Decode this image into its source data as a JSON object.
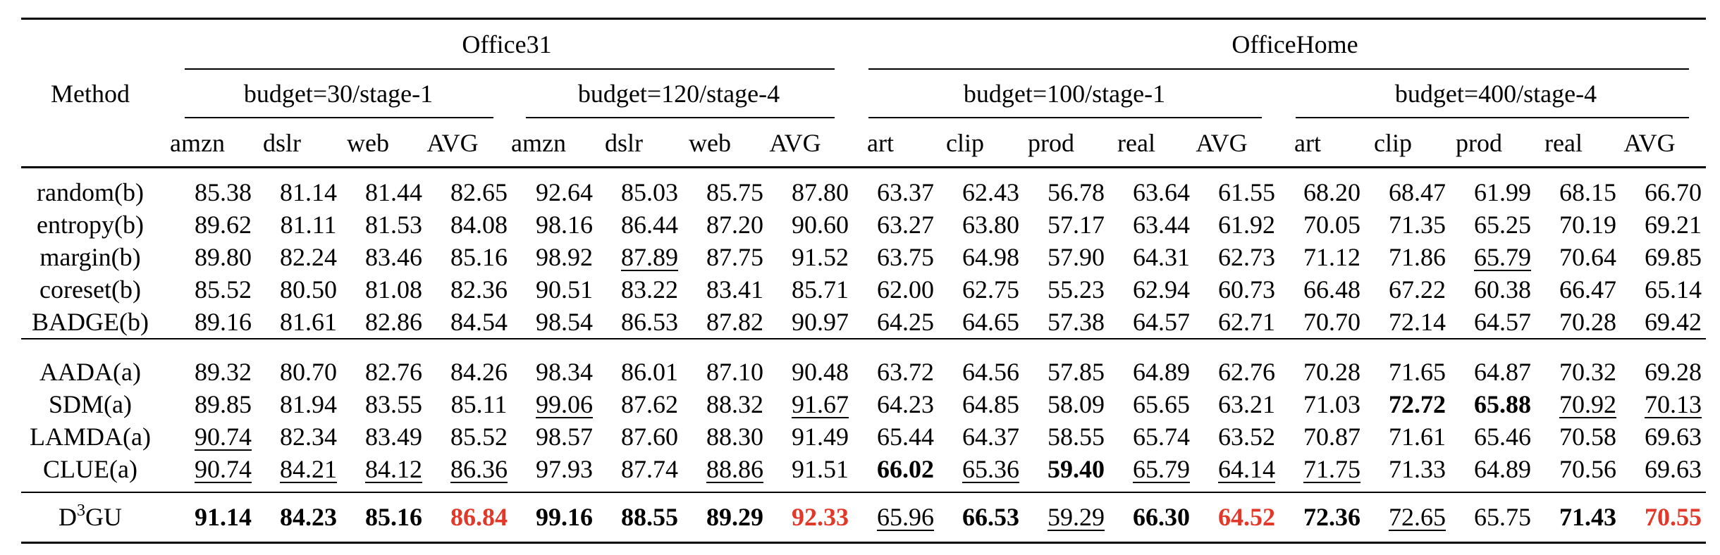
{
  "header": {
    "method_label": "Method",
    "datasets": [
      "Office31",
      "OfficeHome"
    ],
    "budgets": [
      "budget=30/stage-1",
      "budget=120/stage-4",
      "budget=100/stage-1",
      "budget=400/stage-4"
    ],
    "columns": [
      "amzn",
      "dslr",
      "web",
      "AVG",
      "amzn",
      "dslr",
      "web",
      "AVG",
      "art",
      "clip",
      "prod",
      "real",
      "AVG",
      "art",
      "clip",
      "prod",
      "real",
      "AVG"
    ]
  },
  "groups": [
    {
      "rows": [
        {
          "method": "random(b)",
          "values": [
            "85.38",
            "81.14",
            "81.44",
            "82.65",
            "92.64",
            "85.03",
            "85.75",
            "87.80",
            "63.37",
            "62.43",
            "56.78",
            "63.64",
            "61.55",
            "68.20",
            "68.47",
            "61.99",
            "68.15",
            "66.70"
          ],
          "styles": [
            "",
            "",
            "",
            "",
            "",
            "",
            "",
            "",
            "",
            "",
            "",
            "",
            "",
            "",
            "",
            "",
            "",
            ""
          ]
        },
        {
          "method": "entropy(b)",
          "values": [
            "89.62",
            "81.11",
            "81.53",
            "84.08",
            "98.16",
            "86.44",
            "87.20",
            "90.60",
            "63.27",
            "63.80",
            "57.17",
            "63.44",
            "61.92",
            "70.05",
            "71.35",
            "65.25",
            "70.19",
            "69.21"
          ],
          "styles": [
            "",
            "",
            "",
            "",
            "",
            "",
            "",
            "",
            "",
            "",
            "",
            "",
            "",
            "",
            "",
            "",
            "",
            ""
          ]
        },
        {
          "method": "margin(b)",
          "values": [
            "89.80",
            "82.24",
            "83.46",
            "85.16",
            "98.92",
            "87.89",
            "87.75",
            "91.52",
            "63.75",
            "64.98",
            "57.90",
            "64.31",
            "62.73",
            "71.12",
            "71.86",
            "65.79",
            "70.64",
            "69.85"
          ],
          "styles": [
            "",
            "",
            "",
            "",
            "",
            "u",
            "",
            "",
            "",
            "",
            "",
            "",
            "",
            "",
            "",
            "u",
            "",
            ""
          ]
        },
        {
          "method": "coreset(b)",
          "values": [
            "85.52",
            "80.50",
            "81.08",
            "82.36",
            "90.51",
            "83.22",
            "83.41",
            "85.71",
            "62.00",
            "62.75",
            "55.23",
            "62.94",
            "60.73",
            "66.48",
            "67.22",
            "60.38",
            "66.47",
            "65.14"
          ],
          "styles": [
            "",
            "",
            "",
            "",
            "",
            "",
            "",
            "",
            "",
            "",
            "",
            "",
            "",
            "",
            "",
            "",
            "",
            ""
          ]
        },
        {
          "method": "BADGE(b)",
          "values": [
            "89.16",
            "81.61",
            "82.86",
            "84.54",
            "98.54",
            "86.53",
            "87.82",
            "90.97",
            "64.25",
            "64.65",
            "57.38",
            "64.57",
            "62.71",
            "70.70",
            "72.14",
            "64.57",
            "70.28",
            "69.42"
          ],
          "styles": [
            "",
            "",
            "",
            "",
            "",
            "",
            "",
            "",
            "",
            "",
            "",
            "",
            "",
            "",
            "",
            "",
            "",
            ""
          ]
        }
      ]
    },
    {
      "rows": [
        {
          "method": "AADA(a)",
          "values": [
            "89.32",
            "80.70",
            "82.76",
            "84.26",
            "98.34",
            "86.01",
            "87.10",
            "90.48",
            "63.72",
            "64.56",
            "57.85",
            "64.89",
            "62.76",
            "70.28",
            "71.65",
            "64.87",
            "70.32",
            "69.28"
          ],
          "styles": [
            "",
            "",
            "",
            "",
            "",
            "",
            "",
            "",
            "",
            "",
            "",
            "",
            "",
            "",
            "",
            "",
            "",
            ""
          ]
        },
        {
          "method": "SDM(a)",
          "values": [
            "89.85",
            "81.94",
            "83.55",
            "85.11",
            "99.06",
            "87.62",
            "88.32",
            "91.67",
            "64.23",
            "64.85",
            "58.09",
            "65.65",
            "63.21",
            "71.03",
            "72.72",
            "65.88",
            "70.92",
            "70.13"
          ],
          "styles": [
            "",
            "",
            "",
            "",
            "u",
            "",
            "",
            "u",
            "",
            "",
            "",
            "",
            "",
            "",
            "b",
            "b",
            "u",
            "u"
          ]
        },
        {
          "method": "LAMDA(a)",
          "values": [
            "90.74",
            "82.34",
            "83.49",
            "85.52",
            "98.57",
            "87.60",
            "88.30",
            "91.49",
            "65.44",
            "64.37",
            "58.55",
            "65.74",
            "63.52",
            "70.87",
            "71.61",
            "65.46",
            "70.58",
            "69.63"
          ],
          "styles": [
            "u",
            "",
            "",
            "",
            "",
            "",
            "",
            "",
            "",
            "",
            "",
            "",
            "",
            "",
            "",
            "",
            "",
            ""
          ]
        },
        {
          "method": "CLUE(a)",
          "values": [
            "90.74",
            "84.21",
            "84.12",
            "86.36",
            "97.93",
            "87.74",
            "88.86",
            "91.51",
            "66.02",
            "65.36",
            "59.40",
            "65.79",
            "64.14",
            "71.75",
            "71.33",
            "64.89",
            "70.56",
            "69.63"
          ],
          "styles": [
            "u",
            "u",
            "u",
            "u",
            "",
            "",
            "u",
            "",
            "b",
            "u",
            "b",
            "u",
            "u",
            "u",
            "",
            "",
            "",
            ""
          ]
        }
      ]
    },
    {
      "rows": [
        {
          "method": "D",
          "method_sup": "3",
          "method_suffix": "GU",
          "values": [
            "91.14",
            "84.23",
            "85.16",
            "86.84",
            "99.16",
            "88.55",
            "89.29",
            "92.33",
            "65.96",
            "66.53",
            "59.29",
            "66.30",
            "64.52",
            "72.36",
            "72.65",
            "65.75",
            "71.43",
            "70.55"
          ],
          "styles": [
            "b",
            "b",
            "b",
            "r",
            "b",
            "b",
            "b",
            "r",
            "u",
            "b",
            "u",
            "b",
            "r",
            "b",
            "u",
            "",
            "b",
            "r"
          ]
        }
      ]
    }
  ],
  "colors": {
    "highlight": "#e1382a"
  }
}
